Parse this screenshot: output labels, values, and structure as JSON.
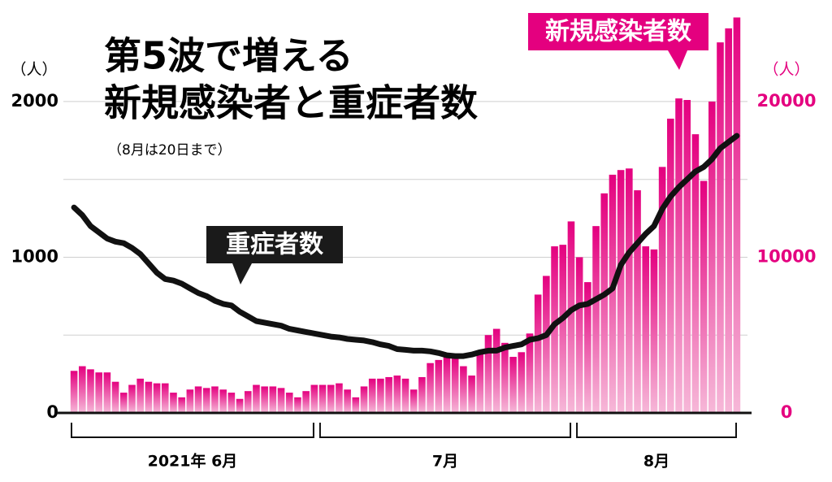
{
  "chart_data": {
    "type": "bar-line",
    "title": [
      "第5波で増える",
      "新規感染者と重症者数"
    ],
    "subtitle": "（8月は20日まで）",
    "y_unit": "（人）",
    "y2_unit": "（人）",
    "annotations": {
      "bars": "新規感染者数",
      "line": "重症者数"
    },
    "groups": [
      {
        "label": "2021年 6月",
        "count": 30
      },
      {
        "label": "7月",
        "count": 31
      },
      {
        "label": "8月",
        "count": 20
      }
    ],
    "categories": [
      null,
      null,
      null,
      null,
      null,
      null,
      null,
      null,
      null,
      null,
      null,
      null,
      null,
      null,
      null,
      null,
      null,
      null,
      null,
      null,
      null,
      null,
      null,
      null,
      null,
      null,
      null,
      null,
      null,
      null,
      null,
      null,
      null,
      null,
      null,
      null,
      null,
      null,
      null,
      null,
      null,
      null,
      null,
      null,
      null,
      null,
      null,
      null,
      null,
      null,
      null,
      null,
      null,
      null,
      null,
      null,
      null,
      null,
      null,
      null,
      null,
      null,
      null,
      null,
      null,
      null,
      null,
      null,
      null,
      null,
      null,
      null,
      null,
      null,
      null,
      null,
      null,
      null,
      null,
      null,
      null
    ],
    "ylim": [
      0,
      2600
    ],
    "yticks": [
      0,
      1000,
      2000
    ],
    "y2lim": [
      0,
      26000
    ],
    "y2ticks": [
      0,
      10000,
      20000
    ],
    "minor_grid": [
      500,
      1500
    ],
    "series": [
      {
        "name": "新規感染者数",
        "axis": "y2",
        "kind": "bar",
        "color": "#e4007f",
        "values": [
          2700,
          3000,
          2800,
          2600,
          2600,
          2000,
          1300,
          1800,
          2200,
          2000,
          1900,
          1900,
          1300,
          1000,
          1500,
          1700,
          1600,
          1700,
          1500,
          1300,
          900,
          1400,
          1800,
          1700,
          1700,
          1600,
          1300,
          1000,
          1400,
          1800,
          1800,
          1800,
          1900,
          1500,
          1000,
          1700,
          2200,
          2200,
          2300,
          2400,
          2200,
          1500,
          2300,
          3200,
          3400,
          3600,
          3500,
          3000,
          2400,
          3800,
          5000,
          5400,
          4500,
          3600,
          3900,
          5100,
          7600,
          8800,
          10700,
          10800,
          12300,
          10000,
          8400,
          12000,
          14100,
          15300,
          15600,
          15700,
          14300,
          10700,
          10500,
          15800,
          18900,
          20200,
          20100,
          17900,
          14900,
          20000,
          23800,
          24700,
          25400
        ]
      },
      {
        "name": "重症者数",
        "axis": "y",
        "kind": "line",
        "color": "#111111",
        "values": [
          1320,
          1270,
          1200,
          1160,
          1120,
          1100,
          1090,
          1060,
          1020,
          960,
          900,
          860,
          850,
          830,
          800,
          770,
          750,
          720,
          700,
          690,
          650,
          620,
          590,
          580,
          570,
          560,
          540,
          530,
          520,
          510,
          500,
          490,
          485,
          475,
          470,
          465,
          455,
          440,
          430,
          410,
          405,
          400,
          400,
          395,
          385,
          370,
          365,
          365,
          375,
          390,
          400,
          400,
          420,
          430,
          440,
          470,
          480,
          500,
          570,
          610,
          660,
          690,
          700,
          730,
          760,
          800,
          950,
          1030,
          1090,
          1150,
          1200,
          1310,
          1390,
          1450,
          1500,
          1550,
          1580,
          1630,
          1700,
          1740,
          1780
        ]
      }
    ]
  }
}
